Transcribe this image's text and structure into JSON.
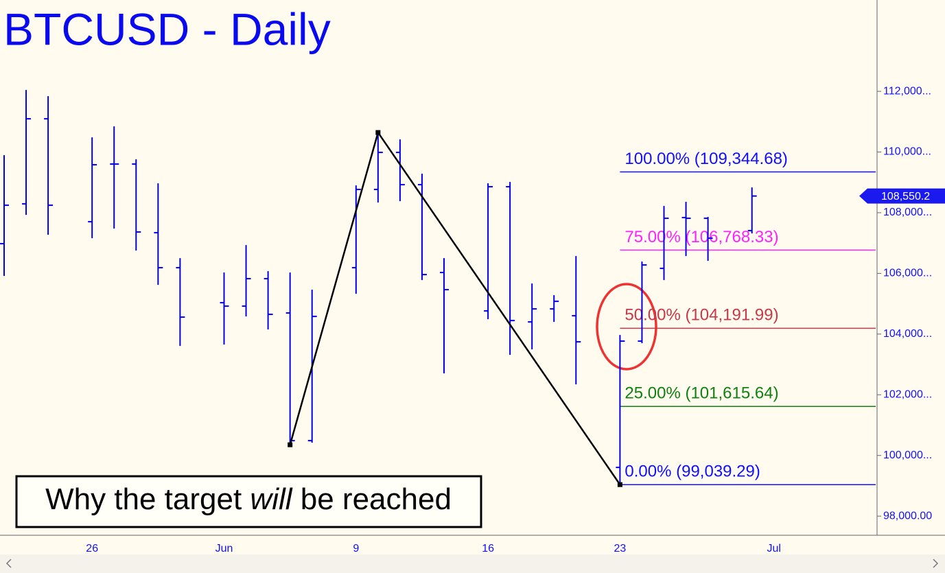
{
  "chart_data": {
    "type": "ohlc",
    "title": "BTCUSD - Daily",
    "annotation": {
      "parts": [
        "Why the target ",
        "will",
        " be reached"
      ]
    },
    "categories": [
      null,
      null,
      null,
      null,
      "26",
      null,
      null,
      null,
      null,
      null,
      "Jun",
      null,
      null,
      null,
      null,
      null,
      "9",
      null,
      null,
      null,
      null,
      null,
      "16",
      null,
      null,
      null,
      null,
      null,
      "23",
      null,
      null,
      null,
      null,
      null,
      null,
      "Jul",
      null,
      null,
      null,
      null
    ],
    "color": "#0000ee",
    "open": [
      106979,
      108291,
      111095,
      null,
      107703,
      109603,
      109603,
      107341,
      106188,
      null,
      105034,
      104921,
      105826,
      104695,
      100488,
      null,
      106188,
      108766,
      109987,
      108924,
      106029,
      null,
      104763,
      108856,
      104401,
      104830,
      104604,
      null,
      99606,
      103768,
      106165,
      107839,
      107816,
      null,
      107409,
      null,
      null,
      null,
      null,
      null
    ],
    "high": [
      109897,
      112045,
      111842,
      null,
      110485,
      110847,
      109761,
      108969,
      106504,
      null,
      106029,
      106934,
      106074,
      106029,
      105464,
      null,
      108902,
      110643,
      110417,
      109286,
      106504,
      null,
      108969,
      109014,
      105667,
      105283,
      106572,
      null,
      103971,
      106391,
      108223,
      108359,
      107861,
      null,
      108834,
      null,
      null,
      null,
      null,
      null
    ],
    "low": [
      105916,
      107929,
      107273,
      null,
      107160,
      107477,
      106753,
      105622,
      103609,
      null,
      103654,
      104582,
      104152,
      100420,
      100420,
      null,
      105328,
      108336,
      108381,
      105780,
      102705,
      null,
      104491,
      103315,
      103496,
      104401,
      102343,
      null,
      99039.29,
      103700,
      105780,
      106572,
      106414,
      null,
      107318,
      null,
      null,
      null,
      null,
      null
    ],
    "close": [
      108246,
      111095,
      108246,
      null,
      109580,
      109603,
      107364,
      106188,
      104559,
      null,
      104921,
      105826,
      104650,
      100488,
      104582,
      null,
      108766,
      109987,
      108924,
      105961,
      105464,
      null,
      108856,
      104446,
      104830,
      105079,
      103745,
      null,
      103768,
      106278,
      107816,
      107816,
      107160,
      null,
      108550.2,
      null,
      null,
      null,
      null,
      null
    ],
    "last_price": {
      "value": 108550.2,
      "label": "108,550.2"
    },
    "zigzag": {
      "x": [
        13,
        17,
        28
      ],
      "values": [
        100352,
        110643,
        99039.29
      ],
      "color": "#000000"
    },
    "levels": [
      {
        "value": 109344.68,
        "label": "100.00% (109,344.68)",
        "color": "#1010ff"
      },
      {
        "value": 106768.33,
        "label": "75.00% (106,768.33)",
        "color": "#ff22ff"
      },
      {
        "value": 104191.99,
        "label": "50.00% (104,191.99)",
        "color": "#c83848"
      },
      {
        "value": 101615.64,
        "label": "25.00% (101,615.64)",
        "color": "#108010"
      },
      {
        "value": 99039.29,
        "label": "0.00% (99,039.29)",
        "color": "#1010ff"
      }
    ],
    "levels_start": 28,
    "ylim": [
      97370,
      115010
    ],
    "yticks": [
      {
        "value": 98000,
        "label": "98,000.00"
      },
      {
        "value": 100000,
        "label": "100,000..."
      },
      {
        "value": 102000,
        "label": "102,000..."
      },
      {
        "value": 104000,
        "label": "104,000..."
      },
      {
        "value": 106000,
        "label": "106,000..."
      },
      {
        "value": 108000,
        "label": "108,000..."
      },
      {
        "value": 110000,
        "label": "110,000..."
      },
      {
        "value": 112000,
        "label": "112,000..."
      }
    ]
  }
}
